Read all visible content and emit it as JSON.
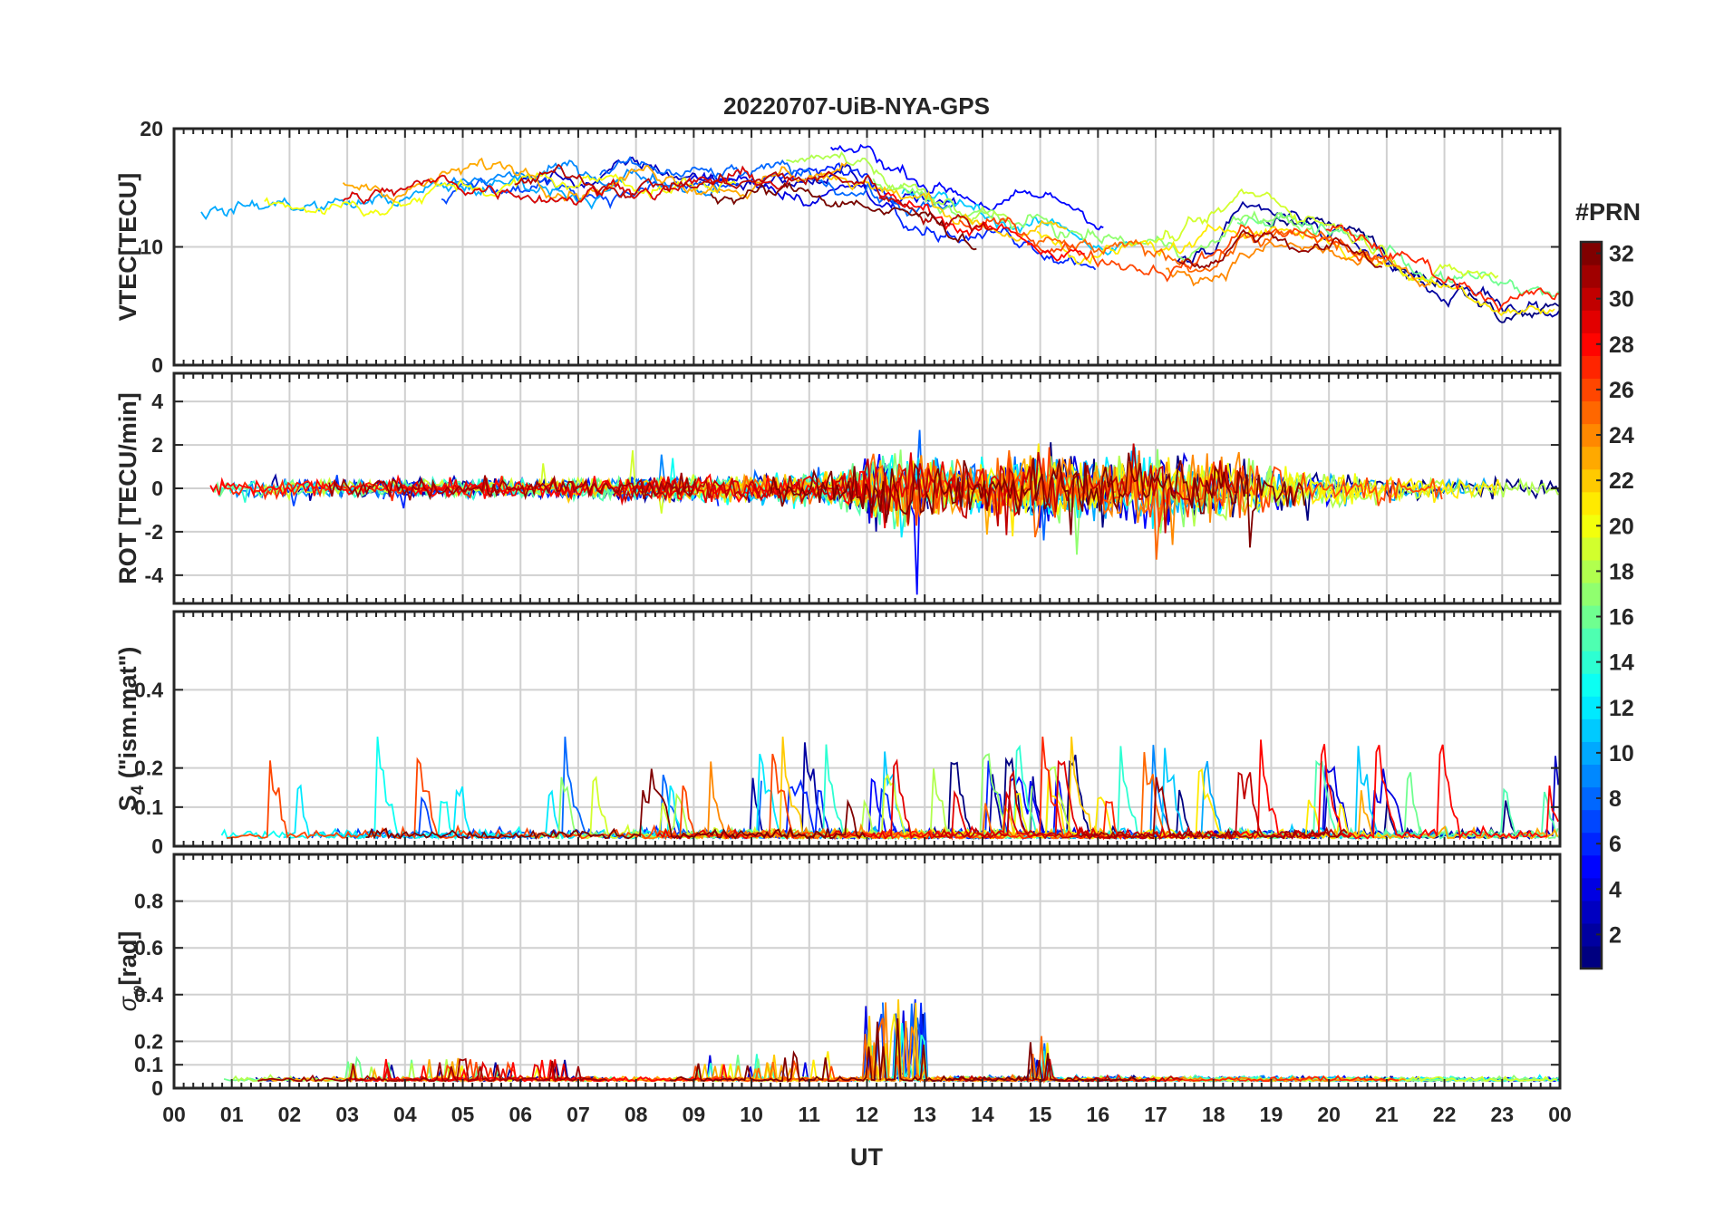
{
  "title": "20220707-UiB-NYA-GPS",
  "chart_data": [
    {
      "type": "line",
      "panel": "vtec",
      "ylabel": "VTEC[TECU]",
      "ylim": [
        0,
        20
      ],
      "yticks": [
        0,
        10,
        20
      ],
      "xlim": [
        0,
        24
      ],
      "color_by": "#PRN",
      "approx_envelope": {
        "x": [
          0,
          1,
          2,
          3,
          4,
          5,
          6,
          7,
          8,
          9,
          10,
          11,
          12,
          12.5,
          13,
          14,
          15,
          16,
          17,
          18,
          18.5,
          19,
          20,
          21,
          22,
          23,
          24
        ],
        "y": [
          13.5,
          13.5,
          14,
          14,
          14.5,
          15,
          15.5,
          15.5,
          16,
          15.5,
          15.5,
          15.5,
          15.5,
          14,
          13.5,
          12,
          11,
          10,
          9.5,
          10,
          12,
          12,
          11,
          9,
          7,
          6,
          5
        ]
      }
    },
    {
      "type": "line",
      "panel": "rot",
      "ylabel": "ROT [TECU/min]",
      "ylim": [
        -5.3,
        5.3
      ],
      "yticks": [
        -4,
        -2,
        0,
        2,
        4
      ],
      "xlim": [
        0,
        24
      ],
      "noise_amplitude": {
        "x": [
          0,
          3,
          6,
          9,
          11.5,
          12,
          12.6,
          13,
          14,
          15,
          16,
          17,
          18,
          19,
          20,
          22,
          24
        ],
        "y": [
          0.4,
          0.5,
          0.5,
          0.6,
          0.8,
          1.6,
          2.2,
          1.4,
          1.3,
          1.8,
          1.6,
          1.9,
          1.6,
          1.2,
          0.9,
          0.6,
          0.4
        ]
      }
    },
    {
      "type": "line",
      "panel": "s4",
      "ylabel": "S4 (\"ism.mat\")",
      "ylim": [
        0,
        0.6
      ],
      "yticks": [
        0,
        0.1,
        0.2,
        0.4
      ],
      "xlim": [
        0,
        24
      ],
      "typical_peaks": [
        0.27,
        0.19,
        0.16,
        0.22,
        0.2,
        0.27,
        0.21,
        0.19,
        0.24,
        0.19,
        0.17,
        0.14,
        0.19,
        0.17
      ]
    },
    {
      "type": "line",
      "panel": "sigma_phi",
      "ylabel": "σφ[rad]",
      "ylim": [
        0,
        1
      ],
      "yticks": [
        0,
        0.1,
        0.2,
        0.4,
        0.6,
        0.8
      ],
      "xlim": [
        0,
        24
      ],
      "typical_peaks": [
        0.12,
        0.18,
        0.3,
        0.36,
        0.18
      ]
    }
  ],
  "xaxis": {
    "label": "UT",
    "ticks": [
      "00",
      "01",
      "02",
      "03",
      "04",
      "05",
      "06",
      "07",
      "08",
      "09",
      "10",
      "11",
      "12",
      "13",
      "14",
      "15",
      "16",
      "17",
      "18",
      "19",
      "20",
      "21",
      "22",
      "23",
      "00"
    ]
  },
  "colorbar": {
    "title": "#PRN",
    "min": 1,
    "max": 32,
    "ticks": [
      "2",
      "4",
      "6",
      "8",
      "10",
      "12",
      "14",
      "16",
      "18",
      "20",
      "22",
      "24",
      "26",
      "28",
      "30",
      "32"
    ],
    "colormap": "jet"
  },
  "colors": {
    "axis": "#262626",
    "grid": "#d0d0d0"
  }
}
